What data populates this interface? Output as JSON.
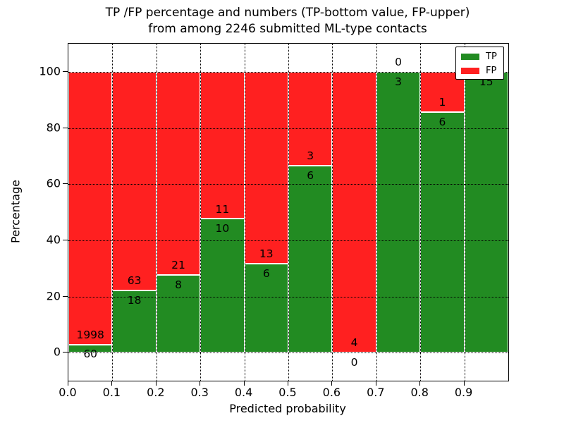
{
  "title": {
    "line1": "TP /FP percentage and numbers (TP-bottom value, FP-upper)",
    "line2": "from among 2246 submitted ML-type contacts"
  },
  "axes": {
    "xlabel": "Predicted probability",
    "ylabel": "Percentage"
  },
  "legend": {
    "items": [
      {
        "label": "TP",
        "color": "#228b22"
      },
      {
        "label": "FP",
        "color": "#ff2020"
      }
    ]
  },
  "chart_data": {
    "type": "bar",
    "stacked": true,
    "normalization": "each bin scaled to 100%, counts shown as labels",
    "title": "TP /FP percentage and numbers (TP-bottom value, FP-upper)\nfrom among 2246 submitted ML-type contacts",
    "xlabel": "Predicted probability",
    "ylabel": "Percentage",
    "total_contacts": 2246,
    "bins": [
      "0.0-0.1",
      "0.1-0.2",
      "0.2-0.3",
      "0.3-0.4",
      "0.4-0.5",
      "0.5-0.6",
      "0.6-0.7",
      "0.7-0.8",
      "0.8-0.9",
      "0.9-1.0"
    ],
    "series": [
      {
        "name": "TP",
        "color": "#228b22",
        "values": [
          60,
          18,
          8,
          10,
          6,
          6,
          0,
          3,
          6,
          15
        ]
      },
      {
        "name": "FP",
        "color": "#ff2020",
        "values": [
          1998,
          63,
          21,
          11,
          13,
          3,
          4,
          0,
          1,
          0
        ]
      }
    ],
    "tp_percent_per_bin": [
      2.9,
      22.2,
      27.6,
      47.6,
      31.6,
      66.7,
      0.0,
      100.0,
      85.7,
      100.0
    ],
    "x_tick_labels": [
      "0.0",
      "0.1",
      "0.2",
      "0.3",
      "0.4",
      "0.5",
      "0.6",
      "0.7",
      "0.8",
      "0.9"
    ],
    "y_ticks": [
      0,
      20,
      40,
      60,
      80,
      100
    ],
    "xlim": [
      0.0,
      1.0
    ],
    "ylim": [
      -10,
      110
    ],
    "grid": "dotted, drawn above bars",
    "legend_position": "upper right"
  }
}
